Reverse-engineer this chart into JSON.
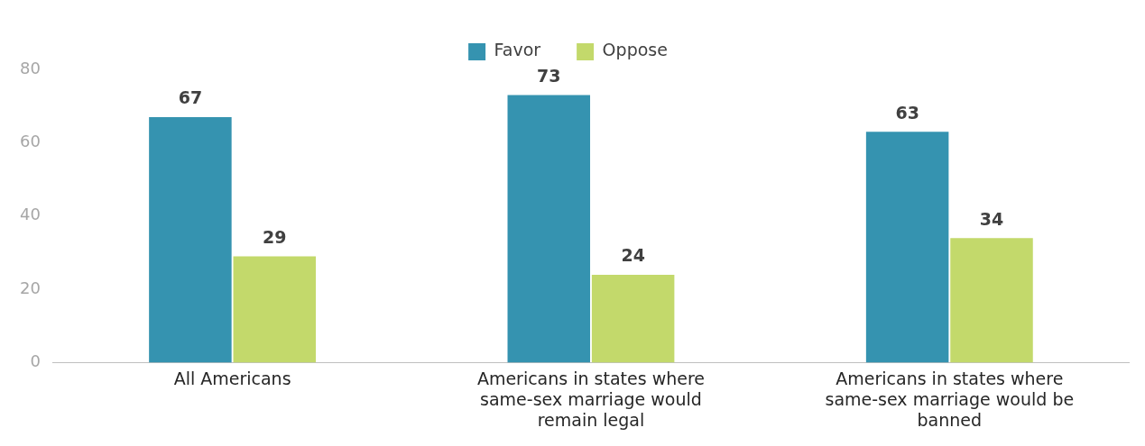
{
  "chart_data": {
    "type": "bar",
    "categories": [
      "All Americans",
      "Americans in states where same-sex marriage would remain legal",
      "Americans in states where same-sex marriage would be banned"
    ],
    "series": [
      {
        "name": "Favor",
        "color": "#3593b0",
        "values": [
          67,
          73,
          63
        ]
      },
      {
        "name": "Oppose",
        "color": "#c3d96b",
        "values": [
          29,
          24,
          34
        ]
      }
    ],
    "ylim": [
      0,
      80
    ],
    "yticks": [
      0,
      20,
      40,
      60,
      80
    ],
    "grid": false,
    "legend": "top",
    "data_labels": true
  }
}
